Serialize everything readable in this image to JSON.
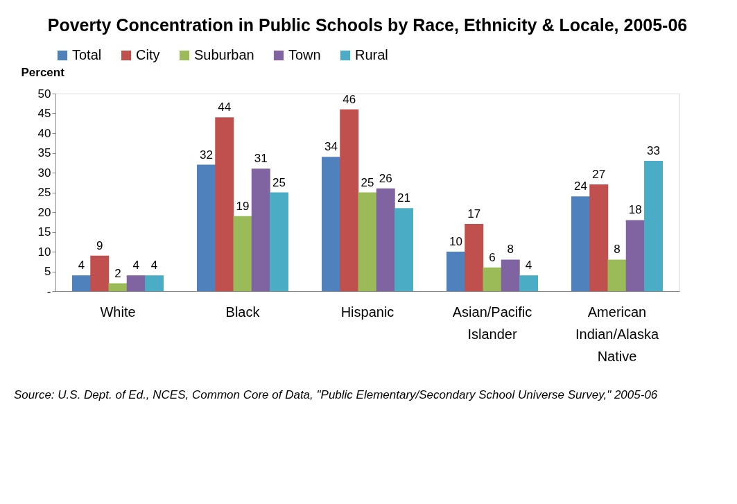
{
  "chart_data": {
    "type": "bar",
    "title": "Poverty Concentration in Public Schools by Race, Ethnicity & Locale, 2005-06",
    "ylabel": "Percent",
    "categories": [
      "White",
      "Black",
      "Hispanic",
      "Asian/Pacific Islander",
      "American Indian/Alaska Native"
    ],
    "series": [
      {
        "name": "Total",
        "color": "#4f81bd",
        "values": [
          4,
          32,
          34,
          10,
          24
        ]
      },
      {
        "name": "City",
        "color": "#c0504d",
        "values": [
          9,
          44,
          46,
          17,
          27
        ]
      },
      {
        "name": "Suburban",
        "color": "#9bbb59",
        "values": [
          2,
          19,
          25,
          6,
          8
        ]
      },
      {
        "name": "Town",
        "color": "#8064a2",
        "values": [
          4,
          31,
          26,
          8,
          18
        ]
      },
      {
        "name": "Rural",
        "color": "#4bacc6",
        "values": [
          4,
          25,
          21,
          4,
          33
        ]
      }
    ],
    "ylim": [
      0,
      50
    ],
    "yticks": [
      {
        "value": 0,
        "label": "-"
      },
      5,
      10,
      15,
      20,
      25,
      30,
      35,
      40,
      45,
      50
    ],
    "data_labels": true,
    "grid": false,
    "legend": "top",
    "annotations": [
      "Source: U.S. Dept. of Ed., NCES, Common Core of Data, \"Public Elementary/Secondary School Universe Survey,\" 2005-06"
    ]
  }
}
